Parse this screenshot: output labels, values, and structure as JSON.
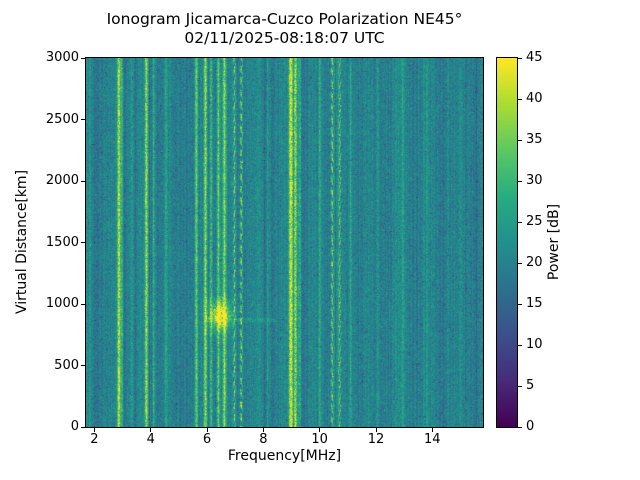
{
  "chart_data": {
    "type": "heatmap",
    "title": "Ionogram Jicamarca-Cuzco Polarization NE45°",
    "subtitle": "02/11/2025-08:18:07 UTC",
    "xlabel": "Frequency[MHz]",
    "ylabel": "Virtual Distance[km]",
    "xlim": [
      1.7,
      15.8
    ],
    "ylim": [
      0,
      3000
    ],
    "xticks": [
      2,
      4,
      6,
      8,
      10,
      12,
      14
    ],
    "yticks": [
      0,
      500,
      1000,
      1500,
      2000,
      2500,
      3000
    ],
    "colormap": "viridis",
    "colorbar": {
      "label": "Power [dB]",
      "range": [
        0,
        45
      ],
      "ticks": [
        0,
        5,
        10,
        15,
        20,
        25,
        30,
        35,
        40,
        45
      ]
    },
    "background_noise_db": {
      "mean": 20,
      "spread": 6
    },
    "interference_lines": [
      {
        "f": 1.85,
        "w": 0.03,
        "s": 5
      },
      {
        "f": 2.87,
        "w": 0.04,
        "s": 22
      },
      {
        "f": 2.97,
        "w": 0.03,
        "s": 9
      },
      {
        "f": 3.35,
        "w": 0.04,
        "s": 6
      },
      {
        "f": 3.84,
        "w": 0.04,
        "s": 19
      },
      {
        "f": 4.1,
        "w": 0.03,
        "s": 9
      },
      {
        "f": 4.55,
        "w": 0.03,
        "s": 6
      },
      {
        "f": 5.62,
        "w": 0.035,
        "s": 12
      },
      {
        "f": 5.95,
        "w": 0.04,
        "s": 17
      },
      {
        "f": 6.15,
        "w": 0.035,
        "s": 13
      },
      {
        "f": 6.4,
        "w": 0.04,
        "s": 15
      },
      {
        "f": 6.62,
        "w": 0.04,
        "s": 16
      },
      {
        "f": 6.97,
        "w": 0.035,
        "s": 15,
        "dash": true
      },
      {
        "f": 7.22,
        "w": 0.035,
        "s": 17,
        "dash": true
      },
      {
        "f": 8.15,
        "w": 0.03,
        "s": 5
      },
      {
        "f": 8.98,
        "w": 0.05,
        "s": 23
      },
      {
        "f": 9.14,
        "w": 0.04,
        "s": 20
      },
      {
        "f": 9.29,
        "w": 0.035,
        "s": 11
      },
      {
        "f": 10.0,
        "w": 0.03,
        "s": 7
      },
      {
        "f": 10.45,
        "w": 0.04,
        "s": 15,
        "dash": true
      },
      {
        "f": 10.72,
        "w": 0.04,
        "s": 15,
        "dash": true
      },
      {
        "f": 11.1,
        "w": 0.03,
        "s": 7
      },
      {
        "f": 12.05,
        "w": 0.03,
        "s": 5
      },
      {
        "f": 12.95,
        "w": 0.03,
        "s": 4
      },
      {
        "f": 13.8,
        "w": 0.03,
        "s": 4
      },
      {
        "f": 14.55,
        "w": 0.03,
        "s": 4
      }
    ],
    "echo": {
      "freq_mhz": 6.45,
      "freq_sigma": 0.27,
      "km_center": 910,
      "km_sigma": 80,
      "peak_db": 24
    },
    "echo_trace": {
      "km": 870,
      "freq_range": [
        5.9,
        8.4
      ],
      "boost_db": 4
    }
  }
}
